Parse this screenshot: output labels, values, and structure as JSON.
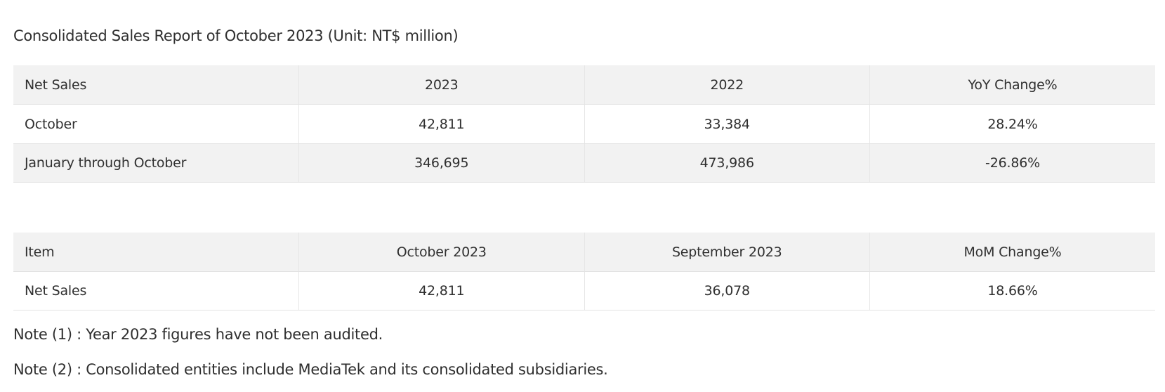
{
  "title": "Consolidated Sales Report of October 2023 (Unit: NT$ million)",
  "yoy_table": {
    "headers": [
      "Net Sales",
      "2023",
      "2022",
      "YoY Change%"
    ],
    "rows": [
      [
        "October",
        "42,811",
        "33,384",
        "28.24%"
      ],
      [
        "January through October",
        "346,695",
        "473,986",
        "-26.86%"
      ]
    ]
  },
  "mom_table": {
    "headers": [
      "Item",
      "October 2023",
      "September 2023",
      "MoM Change%"
    ],
    "rows": [
      [
        "Net Sales",
        "42,811",
        "36,078",
        "18.66%"
      ]
    ]
  },
  "notes": [
    "Note (1) : Year 2023 figures have not been audited.",
    "Note (2) : Consolidated entities include MediaTek and its consolidated subsidiaries."
  ]
}
